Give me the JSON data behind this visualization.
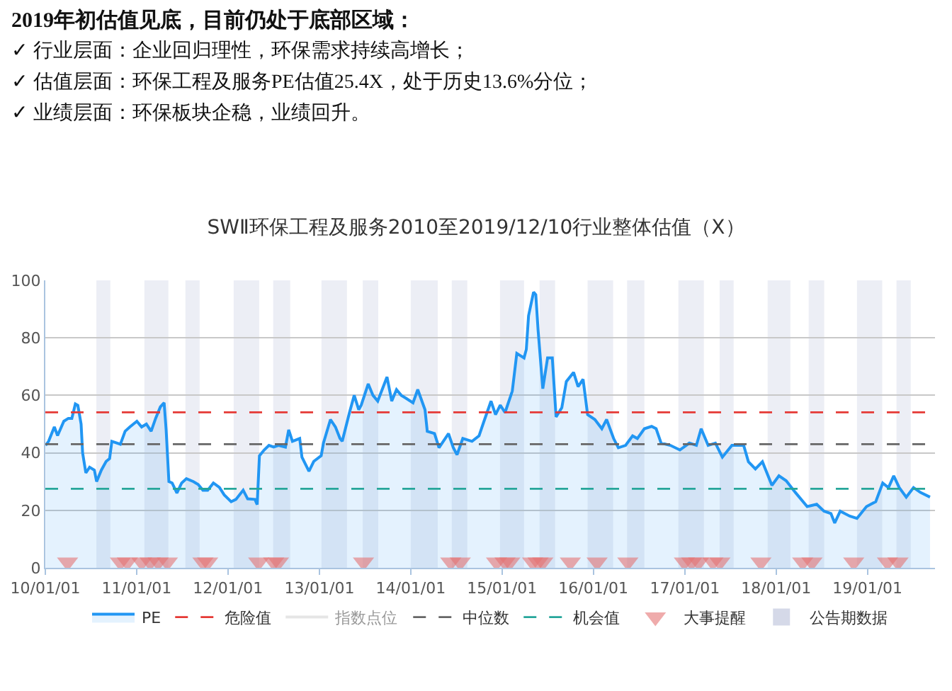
{
  "chart_data": {
    "type": "area",
    "title": "SWⅡ环保工程及服务2010至2019/12/10行业整体估值（X）",
    "annotations": [
      "2019年初估值见底，目前仍处于底部区域：",
      "✓ 行业层面：企业回归理性，环保需求持续高增长；",
      "✓ 估值层面：环保工程及服务PE估值25.4X，处于历史13.6%分位；",
      "✓ 业绩层面：环保板块企稳，业绩回升。"
    ],
    "xlim": [
      "2010-01-01",
      "2019-09-28"
    ],
    "xticks": [
      {
        "value": "2010-01-01",
        "label": "10/01/01"
      },
      {
        "value": "2011-01-01",
        "label": "11/01/01"
      },
      {
        "value": "2012-01-01",
        "label": "12/01/01"
      },
      {
        "value": "2013-01-01",
        "label": "13/01/01"
      },
      {
        "value": "2014-01-01",
        "label": "14/01/01"
      },
      {
        "value": "2015-01-01",
        "label": "15/01/01"
      },
      {
        "value": "2016-01-01",
        "label": "16/01/01"
      },
      {
        "value": "2017-01-01",
        "label": "17/01/01"
      },
      {
        "value": "2018-01-01",
        "label": "18/01/01"
      },
      {
        "value": "2019-01-01",
        "label": "19/01/01"
      }
    ],
    "ylim": [
      0,
      100
    ],
    "yticks": [
      0,
      20,
      40,
      60,
      80,
      100
    ],
    "grid": "y",
    "legend": "bottom",
    "series": [
      {
        "name": "PE",
        "color": "#2196f3",
        "x": [
          "2010-01-02",
          "2010-01-14",
          "2010-02-06",
          "2010-02-19",
          "2010-03-16",
          "2010-04-03",
          "2010-04-17",
          "2010-05-01",
          "2010-05-11",
          "2010-05-24",
          "2010-05-30",
          "2010-06-12",
          "2010-06-27",
          "2010-07-16",
          "2010-07-25",
          "2010-08-13",
          "2010-09-01",
          "2010-09-15",
          "2010-09-24",
          "2010-10-28",
          "2010-11-16",
          "2010-12-05",
          "2011-01-02",
          "2011-01-21",
          "2011-02-09",
          "2011-02-28",
          "2011-03-18",
          "2011-04-06",
          "2011-04-21",
          "2011-04-29",
          "2011-05-10",
          "2011-05-23",
          "2011-06-11",
          "2011-06-30",
          "2011-07-19",
          "2011-08-16",
          "2011-09-04",
          "2011-09-23",
          "2011-10-12",
          "2011-11-04",
          "2011-11-28",
          "2011-12-17",
          "2012-01-14",
          "2012-02-02",
          "2012-03-02",
          "2012-03-20",
          "2012-04-18",
          "2012-04-27",
          "2012-05-06",
          "2012-05-25",
          "2012-06-13",
          "2012-07-02",
          "2012-07-21",
          "2012-08-18",
          "2012-08-31",
          "2012-09-15",
          "2012-10-14",
          "2012-10-23",
          "2012-11-20",
          "2012-12-09",
          "2013-01-08",
          "2013-01-17",
          "2013-02-14",
          "2013-03-06",
          "2013-03-24",
          "2013-04-02",
          "2013-05-01",
          "2013-05-20",
          "2013-06-07",
          "2013-06-17",
          "2013-07-15",
          "2013-08-03",
          "2013-08-22",
          "2013-09-28",
          "2013-10-17",
          "2013-11-05",
          "2013-11-24",
          "2013-12-13",
          "2014-01-10",
          "2014-01-29",
          "2014-02-27",
          "2014-03-08",
          "2014-04-06",
          "2014-04-24",
          "2014-06-01",
          "2014-06-20",
          "2014-07-05",
          "2014-07-28",
          "2014-09-03",
          "2014-10-01",
          "2014-10-20",
          "2014-11-18",
          "2014-12-06",
          "2014-12-25",
          "2015-01-13",
          "2015-02-11",
          "2015-03-01",
          "2015-03-30",
          "2015-04-08",
          "2015-04-17",
          "2015-05-07",
          "2015-05-16",
          "2015-05-25",
          "2015-06-13",
          "2015-07-02",
          "2015-07-21",
          "2015-08-05",
          "2015-08-28",
          "2015-09-15",
          "2015-10-14",
          "2015-11-01",
          "2015-11-21",
          "2015-12-09",
          "2016-01-07",
          "2016-02-04",
          "2016-02-23",
          "2016-03-22",
          "2016-04-10",
          "2016-05-09",
          "2016-06-06",
          "2016-06-25",
          "2016-07-23",
          "2016-08-21",
          "2016-09-08",
          "2016-09-28",
          "2016-11-04",
          "2016-12-12",
          "2017-01-19",
          "2017-02-16",
          "2017-03-07",
          "2017-04-04",
          "2017-05-03",
          "2017-05-31",
          "2017-07-08",
          "2017-08-24",
          "2017-09-12",
          "2017-10-10",
          "2017-11-07",
          "2017-12-15",
          "2018-01-12",
          "2018-02-10",
          "2018-03-19",
          "2018-05-05",
          "2018-06-12",
          "2018-07-11",
          "2018-08-08",
          "2018-08-23",
          "2018-09-14",
          "2018-10-22",
          "2018-11-20",
          "2018-12-28",
          "2019-02-03",
          "2019-03-03",
          "2019-03-26",
          "2019-04-16",
          "2019-05-08",
          "2019-06-05",
          "2019-07-04",
          "2019-08-01",
          "2019-09-08"
        ],
        "values": [
          42.6,
          44,
          49,
          46,
          51,
          52,
          52,
          57,
          56.5,
          50,
          40,
          33,
          35,
          34,
          30,
          34,
          37,
          38,
          44,
          43,
          47.5,
          49,
          51,
          49,
          50,
          47.5,
          52,
          56,
          57.4,
          48,
          30,
          29.5,
          26,
          29.5,
          31,
          30,
          29,
          27,
          27,
          29.5,
          28,
          25.4,
          23,
          23.8,
          27,
          24,
          23.8,
          22,
          39,
          41,
          42.6,
          42,
          42.6,
          42,
          48,
          44,
          45,
          38.5,
          33.6,
          37,
          39,
          43.4,
          51.6,
          49,
          45,
          44,
          54,
          60,
          55,
          56.6,
          64,
          60,
          58,
          66.4,
          58,
          62,
          60,
          59,
          57.4,
          62,
          55,
          47.5,
          46.7,
          41.8,
          46.7,
          41.8,
          39.3,
          45,
          44,
          45.9,
          50.8,
          58,
          53.3,
          56.6,
          54,
          61.5,
          74.6,
          73,
          76,
          87.7,
          95.9,
          95,
          82.8,
          62.3,
          73,
          73,
          52.5,
          55.7,
          64.8,
          68,
          63,
          65.6,
          53.3,
          51.6,
          48.4,
          51.6,
          45,
          41.8,
          42.6,
          45.9,
          45,
          48.4,
          49.2,
          48.4,
          43.4,
          42.6,
          41,
          43.4,
          42.6,
          48.4,
          42.6,
          43.4,
          38.5,
          42.6,
          42.6,
          36.9,
          34.4,
          36.9,
          28.7,
          32,
          30.3,
          26.2,
          21.3,
          22.1,
          19.7,
          18.9,
          15.6,
          19.7,
          18,
          17.2,
          21.3,
          23,
          29.5,
          27.9,
          32,
          27.9,
          24.6,
          27.9,
          26.2,
          24.6
        ]
      },
      {
        "name": "指数点位",
        "color": "#cccccc",
        "type": "line"
      },
      {
        "name": "大事提醒",
        "color": "#e57373",
        "type": "scatter",
        "marker": "triangle",
        "x": [
          "2010-03-31",
          "2010-10-28",
          "2010-11-25",
          "2011-01-21",
          "2011-02-24",
          "2011-03-28",
          "2011-05-04",
          "2011-09-23",
          "2011-10-12",
          "2012-05-03",
          "2012-07-02",
          "2012-07-21",
          "2013-06-26",
          "2014-06-10",
          "2014-07-18",
          "2014-12-10",
          "2015-01-13",
          "2015-02-01",
          "2015-05-03",
          "2015-05-25",
          "2015-06-13",
          "2015-10-01",
          "2016-01-16",
          "2016-05-18",
          "2016-12-30",
          "2017-01-28",
          "2017-02-25",
          "2017-04-23",
          "2017-05-21",
          "2017-11-01",
          "2018-04-17",
          "2018-05-24",
          "2018-11-07",
          "2019-03-22",
          "2019-05-03"
        ],
        "values": [
          2,
          2,
          2,
          2,
          2,
          2,
          2,
          2,
          2,
          2,
          2,
          2,
          2,
          2,
          2,
          2,
          2,
          2,
          2,
          2,
          2,
          2,
          2,
          2,
          2,
          2,
          2,
          2,
          2,
          2,
          2,
          2,
          2,
          2,
          2
        ]
      }
    ],
    "ref_lines": [
      {
        "axis": "y",
        "value": 54.1,
        "label": "危险值",
        "color": "#e53935",
        "line_style": "dashed"
      },
      {
        "axis": "y",
        "value": 43,
        "label": "中位数",
        "color": "#666666",
        "line_style": "dashed"
      },
      {
        "axis": "y",
        "value": 27.5,
        "label": "机会值",
        "color": "#26a69a",
        "line_style": "dashed"
      }
    ],
    "bands": [
      {
        "axis": "x",
        "from": "2010-07-24",
        "to": "2010-09-18",
        "label": "公告期数据",
        "color": "#d5d9e8"
      },
      {
        "axis": "x",
        "from": "2011-02-01",
        "to": "2011-05-08"
      },
      {
        "axis": "x",
        "from": "2011-07-15",
        "to": "2011-09-10"
      },
      {
        "axis": "x",
        "from": "2012-01-24",
        "to": "2012-05-05"
      },
      {
        "axis": "x",
        "from": "2012-06-30",
        "to": "2012-09-06"
      },
      {
        "axis": "x",
        "from": "2013-01-09",
        "to": "2013-04-21"
      },
      {
        "axis": "x",
        "from": "2013-06-23",
        "to": "2013-08-24"
      },
      {
        "axis": "x",
        "from": "2014-01-01",
        "to": "2014-04-19"
      },
      {
        "axis": "x",
        "from": "2014-06-14",
        "to": "2014-08-15"
      },
      {
        "axis": "x",
        "from": "2014-12-24",
        "to": "2015-03-30"
      },
      {
        "axis": "x",
        "from": "2015-05-31",
        "to": "2015-08-01"
      },
      {
        "axis": "x",
        "from": "2015-12-09",
        "to": "2016-03-20"
      },
      {
        "axis": "x",
        "from": "2016-05-15",
        "to": "2016-07-23"
      },
      {
        "axis": "x",
        "from": "2016-12-06",
        "to": "2017-03-18"
      },
      {
        "axis": "x",
        "from": "2017-05-20",
        "to": "2017-07-15"
      },
      {
        "axis": "x",
        "from": "2017-11-28",
        "to": "2018-02-27"
      },
      {
        "axis": "x",
        "from": "2018-05-11",
        "to": "2018-07-12"
      },
      {
        "axis": "x",
        "from": "2018-11-20",
        "to": "2019-03-01"
      },
      {
        "axis": "x",
        "from": "2019-04-27",
        "to": "2019-06-23"
      }
    ]
  }
}
